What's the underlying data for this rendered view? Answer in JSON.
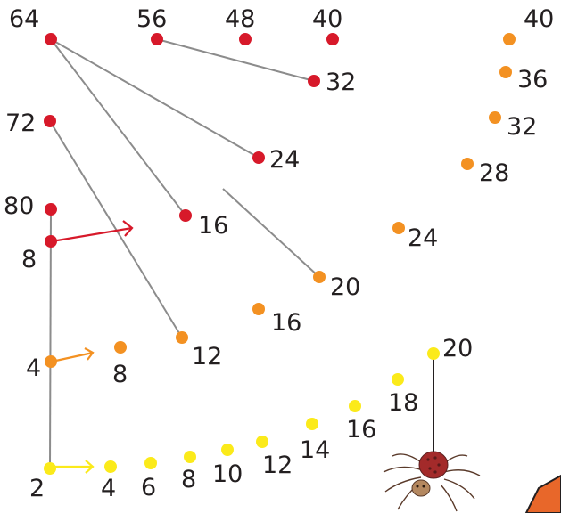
{
  "puzzle": {
    "colors": {
      "red": "#d7192a",
      "orange": "#f39122",
      "yellow": "#fbea1a",
      "line": "#8c8c8c",
      "text": "#231f20"
    },
    "yellow_dots": [
      "2",
      "4",
      "6",
      "8",
      "10",
      "12",
      "14",
      "16",
      "18",
      "20"
    ],
    "orange_dots": [
      "4",
      "8",
      "12",
      "16",
      "20",
      "24",
      "28",
      "32",
      "36",
      "40"
    ],
    "red_dots": [
      "8",
      "16",
      "24",
      "32",
      "40",
      "48",
      "56",
      "64",
      "72",
      "80"
    ],
    "arrows": [
      "yellow",
      "orange",
      "red"
    ],
    "decor": [
      "spider",
      "orange-shape"
    ]
  }
}
